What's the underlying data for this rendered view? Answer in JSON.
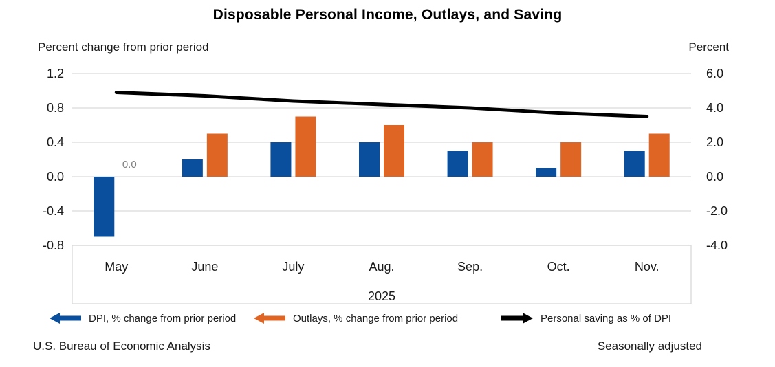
{
  "title": "Disposable Personal Income, Outlays, and Saving",
  "chart_data": {
    "type": "bar",
    "subtype": "grouped bars with overlaid line, dual axis",
    "categories": [
      "May",
      "June",
      "July",
      "Aug.",
      "Sep.",
      "Oct.",
      "Nov."
    ],
    "year_label": "2025",
    "series": [
      {
        "name": "DPI, % change from prior period",
        "kind": "bar",
        "axis": "left",
        "color": "#0a4f9d",
        "values": [
          -0.7,
          0.2,
          0.4,
          0.4,
          0.3,
          0.1,
          0.3
        ]
      },
      {
        "name": "Outlays, % change from prior period",
        "kind": "bar",
        "axis": "left",
        "color": "#df6525",
        "values": [
          0.0,
          0.5,
          0.7,
          0.6,
          0.4,
          0.4,
          0.5
        ]
      },
      {
        "name": "Personal saving as % of DPI",
        "kind": "line",
        "axis": "right",
        "color": "#000000",
        "values": [
          4.9,
          4.7,
          4.4,
          4.2,
          4.0,
          3.7,
          3.5
        ]
      }
    ],
    "left_axis": {
      "label": "Percent change from prior period",
      "ticks": [
        "1.2",
        "0.8",
        "0.4",
        "0.0",
        "-0.4",
        "-0.8"
      ],
      "min": -0.8,
      "max": 1.2
    },
    "right_axis": {
      "label": "Percent",
      "ticks": [
        "6.0",
        "4.0",
        "2.0",
        "0.0",
        "-2.0",
        "-4.0"
      ],
      "min": -4.0,
      "max": 6.0
    },
    "annotation": {
      "text": "0.0",
      "series": "Outlays, % change from prior period",
      "category": "May",
      "color": "#7f7f7f"
    },
    "gridline_color": "#d9d9d9",
    "grid": true,
    "legend_position": "bottom"
  },
  "legend": {
    "items": [
      {
        "label": "DPI, % change from prior period",
        "marker": "arrow-left",
        "color": "#0a4f9d"
      },
      {
        "label": "Outlays, % change from prior period",
        "marker": "arrow-left",
        "color": "#df6525"
      },
      {
        "label": "Personal saving as % of DPI",
        "marker": "arrow-right",
        "color": "#000000"
      }
    ]
  },
  "footer": {
    "left": "U.S. Bureau of Economic Analysis",
    "right": "Seasonally adjusted"
  }
}
